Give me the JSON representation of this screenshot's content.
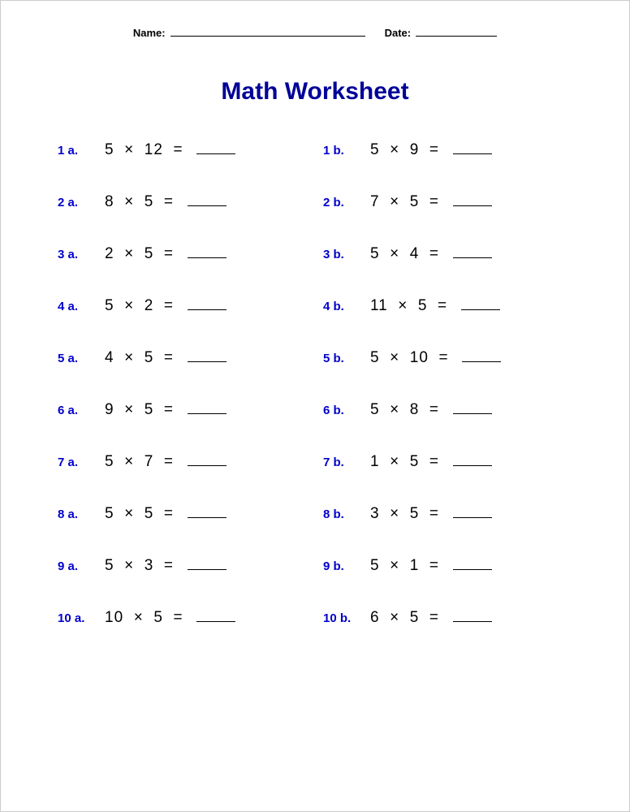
{
  "header": {
    "name_label": "Name:",
    "date_label": "Date:"
  },
  "title": {
    "text": "Math Worksheet",
    "color": "#000099"
  },
  "label_color": "#0000cc",
  "mult_sign": "×",
  "eq_sign": "=",
  "problems": [
    {
      "label": "1 a.",
      "a": 5,
      "b": 12
    },
    {
      "label": "1 b.",
      "a": 5,
      "b": 9
    },
    {
      "label": "2 a.",
      "a": 8,
      "b": 5
    },
    {
      "label": "2 b.",
      "a": 7,
      "b": 5
    },
    {
      "label": "3 a.",
      "a": 2,
      "b": 5
    },
    {
      "label": "3 b.",
      "a": 5,
      "b": 4
    },
    {
      "label": "4 a.",
      "a": 5,
      "b": 2
    },
    {
      "label": "4 b.",
      "a": 11,
      "b": 5
    },
    {
      "label": "5 a.",
      "a": 4,
      "b": 5
    },
    {
      "label": "5 b.",
      "a": 5,
      "b": 10
    },
    {
      "label": "6 a.",
      "a": 9,
      "b": 5
    },
    {
      "label": "6 b.",
      "a": 5,
      "b": 8
    },
    {
      "label": "7 a.",
      "a": 5,
      "b": 7
    },
    {
      "label": "7 b.",
      "a": 1,
      "b": 5
    },
    {
      "label": "8 a.",
      "a": 5,
      "b": 5
    },
    {
      "label": "8 b.",
      "a": 3,
      "b": 5
    },
    {
      "label": "9 a.",
      "a": 5,
      "b": 3
    },
    {
      "label": "9 b.",
      "a": 5,
      "b": 1
    },
    {
      "label": "10 a.",
      "a": 10,
      "b": 5
    },
    {
      "label": "10 b.",
      "a": 6,
      "b": 5
    }
  ]
}
